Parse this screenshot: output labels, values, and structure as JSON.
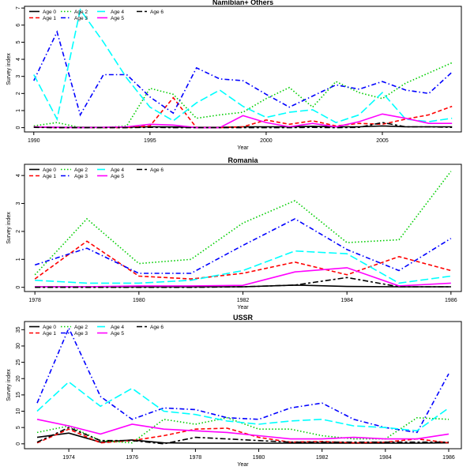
{
  "chart_data": [
    {
      "type": "line",
      "title": "Namibian+ Others",
      "xlabel": "Year",
      "ylabel": "Survey index",
      "xlim": [
        1989.6,
        2008.4
      ],
      "ylim": [
        -0.25,
        7.1
      ],
      "xticks": [
        1990,
        1995,
        2000,
        2005
      ],
      "yticks": [
        0,
        1,
        2,
        3,
        4,
        5,
        6,
        7
      ],
      "legend": "top-left",
      "x": [
        1990,
        1991,
        1992,
        1993,
        1994,
        1995,
        1996,
        1997,
        1998,
        1999,
        2000,
        2001,
        2002,
        2003,
        2004,
        2005,
        2006,
        2007,
        2008
      ],
      "series": [
        {
          "name": "Age 0",
          "color": "#000000",
          "dash": "solid",
          "values": [
            0.03,
            0.02,
            0.02,
            0.02,
            0.03,
            0.05,
            0.04,
            0.02,
            0.02,
            0.05,
            0.05,
            0.05,
            0.08,
            0.05,
            0.05,
            0.1,
            0.05,
            0.05,
            0.05
          ]
        },
        {
          "name": "Age 1",
          "color": "#ff0000",
          "dash": "dashed",
          "values": [
            0.05,
            0.0,
            0.0,
            0.0,
            0.0,
            0.1,
            1.75,
            0.0,
            0.0,
            0.05,
            0.45,
            0.2,
            0.4,
            0.1,
            0.25,
            0.2,
            0.5,
            0.75,
            1.25
          ]
        },
        {
          "name": "Age 2",
          "color": "#00cd00",
          "dash": "dotted",
          "values": [
            0.1,
            0.3,
            0.0,
            0.0,
            0.1,
            2.3,
            1.95,
            0.55,
            0.75,
            0.9,
            1.7,
            2.35,
            1.2,
            2.7,
            2.05,
            1.7,
            2.6,
            3.2,
            3.8
          ]
        },
        {
          "name": "Age 3",
          "color": "#0000ff",
          "dash": "dashdot",
          "values": [
            2.75,
            5.6,
            0.75,
            3.1,
            3.1,
            1.8,
            0.85,
            3.5,
            2.85,
            2.75,
            1.95,
            1.2,
            1.85,
            2.5,
            2.25,
            2.7,
            2.2,
            2.0,
            3.25
          ]
        },
        {
          "name": "Age 4",
          "color": "#00ffff",
          "dash": "longdash",
          "values": [
            3.1,
            0.5,
            6.9,
            5.0,
            2.9,
            1.2,
            0.4,
            1.45,
            2.2,
            1.25,
            0.6,
            0.9,
            1.05,
            0.3,
            0.75,
            2.05,
            0.5,
            0.35,
            0.55
          ]
        },
        {
          "name": "Age 5",
          "color": "#ff00ff",
          "dash": "solid",
          "values": [
            0.05,
            0.02,
            0.0,
            0.02,
            0.05,
            0.2,
            0.15,
            0.0,
            0.0,
            0.7,
            0.3,
            0.05,
            0.25,
            0.05,
            0.35,
            0.8,
            0.55,
            0.25,
            0.25
          ]
        },
        {
          "name": "Age 6",
          "color": "#000000",
          "dash": "twodash",
          "values": [
            0.02,
            0.0,
            0.0,
            0.0,
            0.0,
            0.02,
            0.0,
            0.0,
            0.0,
            0.0,
            0.0,
            0.0,
            0.02,
            0.0,
            0.02,
            0.3,
            0.05,
            0.05,
            0.02
          ]
        }
      ]
    },
    {
      "type": "line",
      "title": "Romania",
      "xlabel": "Year",
      "ylabel": "Survey index",
      "xlim": [
        1977.8,
        1986.2
      ],
      "ylim": [
        -0.15,
        4.4
      ],
      "xticks": [
        1978,
        1980,
        1982,
        1984,
        1986
      ],
      "yticks": [
        0,
        1,
        2,
        3,
        4
      ],
      "legend": "top-left",
      "x": [
        1978,
        1979,
        1980,
        1981,
        1982,
        1983,
        1984,
        1985,
        1986
      ],
      "series": [
        {
          "name": "Age 0",
          "color": "#000000",
          "dash": "solid",
          "values": [
            0.02,
            0.02,
            0.02,
            0.02,
            0.02,
            0.08,
            0.03,
            0.02,
            0.02
          ]
        },
        {
          "name": "Age 1",
          "color": "#ff0000",
          "dash": "dashed",
          "values": [
            0.3,
            1.65,
            0.4,
            0.3,
            0.5,
            0.9,
            0.45,
            1.1,
            0.6
          ]
        },
        {
          "name": "Age 2",
          "color": "#00cd00",
          "dash": "dotted",
          "values": [
            0.45,
            2.45,
            0.85,
            1.0,
            2.3,
            3.1,
            1.6,
            1.7,
            4.15
          ]
        },
        {
          "name": "Age 3",
          "color": "#0000ff",
          "dash": "dashdot",
          "values": [
            0.8,
            1.4,
            0.5,
            0.5,
            1.5,
            2.45,
            1.35,
            0.6,
            1.75
          ]
        },
        {
          "name": "Age 4",
          "color": "#00ffff",
          "dash": "longdash",
          "values": [
            0.25,
            0.15,
            0.15,
            0.25,
            0.6,
            1.3,
            1.2,
            0.15,
            0.4
          ]
        },
        {
          "name": "Age 5",
          "color": "#ff00ff",
          "dash": "solid",
          "values": [
            0.02,
            0.02,
            0.05,
            0.05,
            0.07,
            0.55,
            0.7,
            0.05,
            0.15
          ]
        },
        {
          "name": "Age 6",
          "color": "#000000",
          "dash": "twodash",
          "values": [
            0.0,
            0.0,
            0.0,
            0.0,
            0.02,
            0.08,
            0.35,
            0.02,
            0.02
          ]
        }
      ]
    },
    {
      "type": "line",
      "title": "USSR",
      "xlabel": "Year",
      "ylabel": "Survey index",
      "xlim": [
        1972.6,
        1986.4
      ],
      "ylim": [
        -1.5,
        37.5
      ],
      "xticks": [
        1974,
        1976,
        1978,
        1980,
        1982,
        1984,
        1986
      ],
      "yticks": [
        0,
        5,
        10,
        15,
        20,
        25,
        30,
        35
      ],
      "legend": "top-left",
      "x": [
        1973,
        1974,
        1975,
        1976,
        1977,
        1978,
        1979,
        1980,
        1981,
        1982,
        1983,
        1984,
        1985,
        1986
      ],
      "series": [
        {
          "name": "Age 0",
          "color": "#000000",
          "dash": "solid",
          "values": [
            2.0,
            3.3,
            0.5,
            1.2,
            0.3,
            0.2,
            0.2,
            0.2,
            0.2,
            0.2,
            0.2,
            0.2,
            0.2,
            0.3
          ]
        },
        {
          "name": "Age 1",
          "color": "#ff0000",
          "dash": "dashed",
          "values": [
            0.3,
            4.5,
            0.3,
            1.0,
            2.5,
            4.5,
            4.8,
            2.0,
            0.5,
            0.7,
            0.3,
            0.5,
            1.5,
            0.3
          ]
        },
        {
          "name": "Age 2",
          "color": "#00cd00",
          "dash": "dotted",
          "values": [
            3.5,
            5.5,
            1.0,
            0.3,
            7.5,
            6.0,
            8.0,
            4.5,
            4.5,
            2.5,
            1.5,
            1.5,
            8.0,
            7.5
          ]
        },
        {
          "name": "Age 3",
          "color": "#0000ff",
          "dash": "dashdot",
          "values": [
            12.5,
            35.5,
            14.5,
            7.5,
            11.0,
            10.5,
            8.0,
            7.5,
            11.0,
            12.5,
            7.5,
            5.0,
            3.5,
            21.5
          ]
        },
        {
          "name": "Age 4",
          "color": "#00ffff",
          "dash": "longdash",
          "values": [
            10.0,
            19.0,
            11.5,
            17.0,
            10.0,
            9.0,
            7.0,
            6.0,
            7.0,
            7.5,
            5.5,
            5.0,
            4.0,
            11.0
          ]
        },
        {
          "name": "Age 5",
          "color": "#ff00ff",
          "dash": "solid",
          "values": [
            7.5,
            5.5,
            3.0,
            6.0,
            4.5,
            4.0,
            3.5,
            2.5,
            1.5,
            1.5,
            2.0,
            1.5,
            1.5,
            3.0
          ]
        },
        {
          "name": "Age 6",
          "color": "#000000",
          "dash": "twodash",
          "values": [
            0.5,
            5.0,
            1.0,
            1.0,
            0.0,
            2.0,
            1.5,
            1.0,
            0.5,
            0.5,
            0.5,
            0.5,
            0.5,
            0.5
          ]
        }
      ]
    }
  ]
}
